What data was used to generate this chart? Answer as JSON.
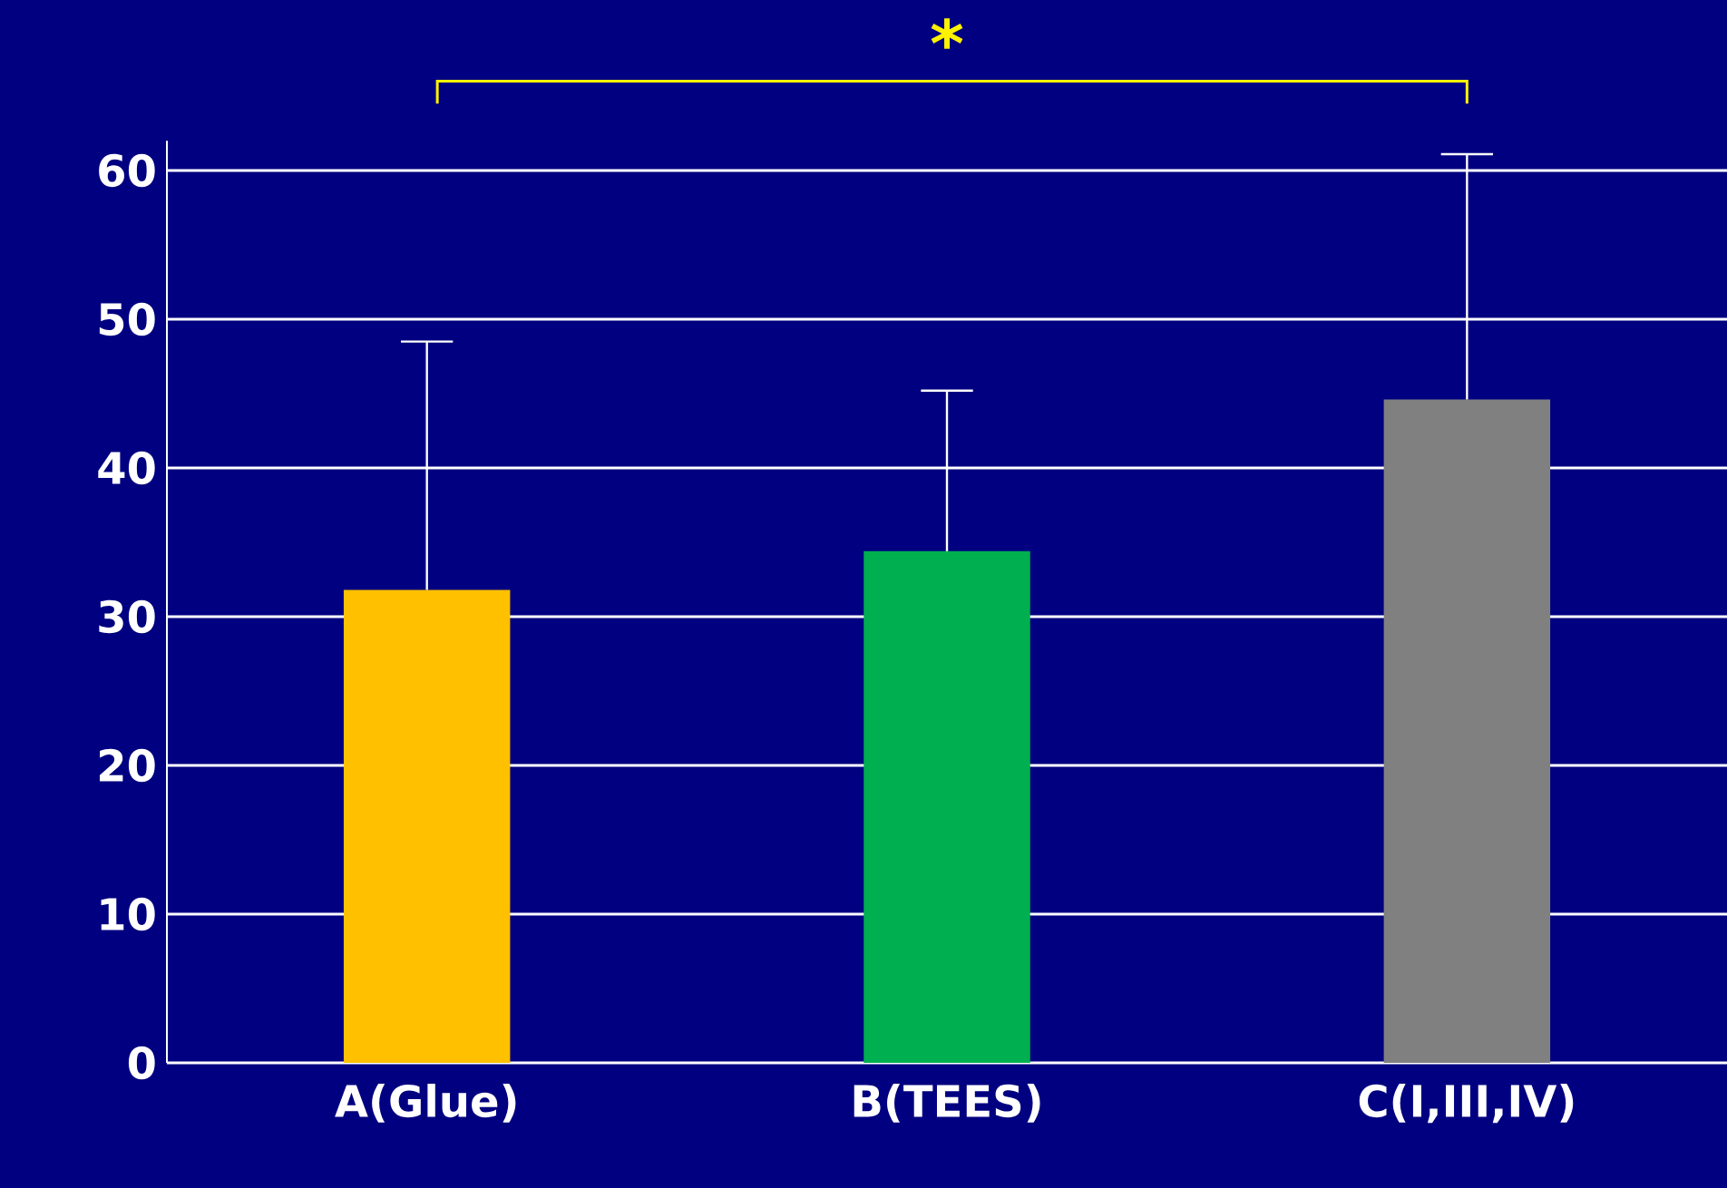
{
  "chart_data": {
    "type": "bar",
    "categories": [
      "A(Glue)",
      "B(TEES)",
      "C(I,III,IV)"
    ],
    "values": [
      31.8,
      34.4,
      44.6
    ],
    "colors": [
      "#ffc000",
      "#00b050",
      "#808080"
    ],
    "errors": [
      [
        31.8,
        48.5
      ],
      [
        34.4,
        45.2
      ],
      [
        44.6,
        61.1
      ]
    ],
    "ylim": [
      0,
      62
    ],
    "yticks": [
      0,
      10,
      20,
      30,
      40,
      50,
      60
    ],
    "grid": "y",
    "annotations": [
      "*"
    ]
  }
}
